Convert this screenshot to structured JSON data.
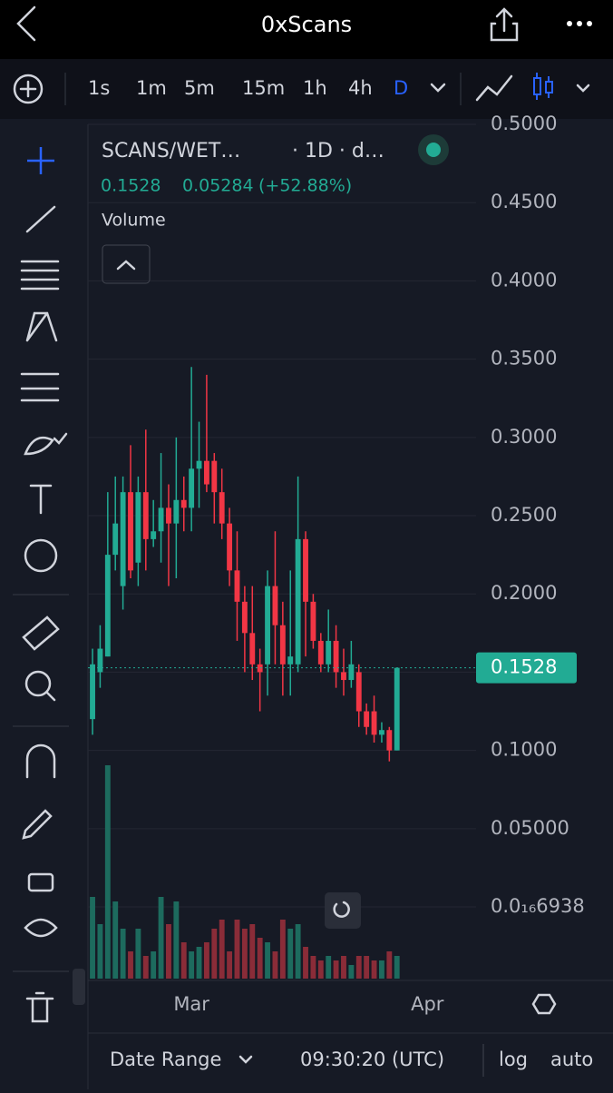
{
  "header": {
    "title": "0xScans"
  },
  "toolbar": {
    "intervals": [
      "1s",
      "1m",
      "5m",
      "15m",
      "1h",
      "4h",
      "D"
    ]
  },
  "chart_data": {
    "type": "candlestick",
    "title": "SCANS/WET…",
    "subtitle": "· 1D · d…",
    "change": "0.05284",
    "change_percent": "(+52.88%)",
    "volume_label": "Volume",
    "categories": [
      null,
      null,
      null,
      null,
      null,
      null,
      null,
      null,
      null,
      null,
      null,
      null,
      null,
      null,
      null,
      null,
      null,
      null,
      null,
      null,
      null,
      null,
      null,
      null,
      null,
      null,
      null,
      null,
      null,
      null,
      null,
      null,
      null,
      null,
      null,
      null,
      null,
      null,
      null,
      null,
      null
    ],
    "open": [
      0.12,
      0.15,
      0.16,
      0.225,
      0.205,
      0.265,
      0.22,
      0.265,
      0.235,
      0.24,
      0.255,
      0.245,
      0.26,
      0.255,
      0.28,
      0.285,
      0.285,
      0.265,
      0.245,
      0.215,
      0.195,
      0.175,
      0.155,
      0.155,
      0.205,
      0.18,
      0.155,
      0.155,
      0.235,
      0.195,
      0.17,
      0.155,
      0.17,
      0.15,
      0.145,
      0.15,
      0.125,
      0.125,
      0.11,
      0.113,
      0.1
    ],
    "high": [
      0.165,
      0.18,
      0.265,
      0.275,
      0.275,
      0.295,
      0.275,
      0.305,
      0.26,
      0.29,
      0.27,
      0.3,
      0.275,
      0.345,
      0.31,
      0.34,
      0.29,
      0.28,
      0.255,
      0.24,
      0.205,
      0.205,
      0.165,
      0.215,
      0.24,
      0.195,
      0.215,
      0.275,
      0.24,
      0.2,
      0.175,
      0.19,
      0.18,
      0.165,
      0.17,
      0.155,
      0.13,
      0.135,
      0.118,
      0.115,
      0.1528
    ],
    "low": [
      0.11,
      0.14,
      0.16,
      0.215,
      0.19,
      0.21,
      0.205,
      0.215,
      0.23,
      0.22,
      0.205,
      0.21,
      0.24,
      0.24,
      0.255,
      0.265,
      0.245,
      0.235,
      0.205,
      0.17,
      0.15,
      0.145,
      0.125,
      0.135,
      0.155,
      0.135,
      0.135,
      0.15,
      0.16,
      0.165,
      0.15,
      0.15,
      0.14,
      0.135,
      0.14,
      0.115,
      0.11,
      0.105,
      0.105,
      0.093,
      0.1
    ],
    "close": [
      0.155,
      0.165,
      0.225,
      0.245,
      0.265,
      0.215,
      0.265,
      0.235,
      0.24,
      0.255,
      0.245,
      0.26,
      0.255,
      0.28,
      0.285,
      0.27,
      0.265,
      0.245,
      0.215,
      0.195,
      0.175,
      0.155,
      0.15,
      0.205,
      0.18,
      0.155,
      0.16,
      0.235,
      0.195,
      0.17,
      0.155,
      0.17,
      0.15,
      0.145,
      0.155,
      0.125,
      0.115,
      0.11,
      0.113,
      0.1,
      0.1528
    ],
    "volume": [
      90,
      60,
      235,
      85,
      55,
      30,
      55,
      25,
      30,
      90,
      60,
      85,
      40,
      30,
      35,
      40,
      55,
      65,
      30,
      65,
      55,
      60,
      45,
      40,
      30,
      65,
      55,
      60,
      35,
      25,
      20,
      25,
      20,
      25,
      15,
      25,
      25,
      20,
      20,
      30,
      25
    ],
    "ylim": [
      -0.0458,
      0.5
    ],
    "yticks": [
      {
        "value": 6.938e-17,
        "label": "0.0₁₆6938"
      },
      {
        "value": 0.05,
        "label": "0.05000"
      },
      {
        "value": 0.1,
        "label": "0.1000"
      },
      {
        "value": 0.15,
        "label": "0.1500"
      },
      {
        "value": 0.2,
        "label": "0.2000"
      },
      {
        "value": 0.25,
        "label": "0.2500"
      },
      {
        "value": 0.3,
        "label": "0.3000"
      },
      {
        "value": 0.35,
        "label": "0.3500"
      },
      {
        "value": 0.4,
        "label": "0.4000"
      },
      {
        "value": 0.45,
        "label": "0.4500"
      },
      {
        "value": 0.5,
        "label": "0.5000"
      }
    ],
    "xlim": [
      -0.6,
      50.4
    ],
    "xticks": [
      {
        "value": 13,
        "label": "Mar"
      },
      {
        "value": 44,
        "label": "Apr"
      }
    ],
    "grid": true,
    "up_color": "#22ab94",
    "down_color": "#f23645",
    "volume_up_color": "#1d6b5e",
    "volume_down_color": "#8a2c38"
  },
  "footer": {
    "range": "Date Range",
    "time": "09:30:20 (UTC)",
    "log": "log",
    "auto": "auto"
  }
}
